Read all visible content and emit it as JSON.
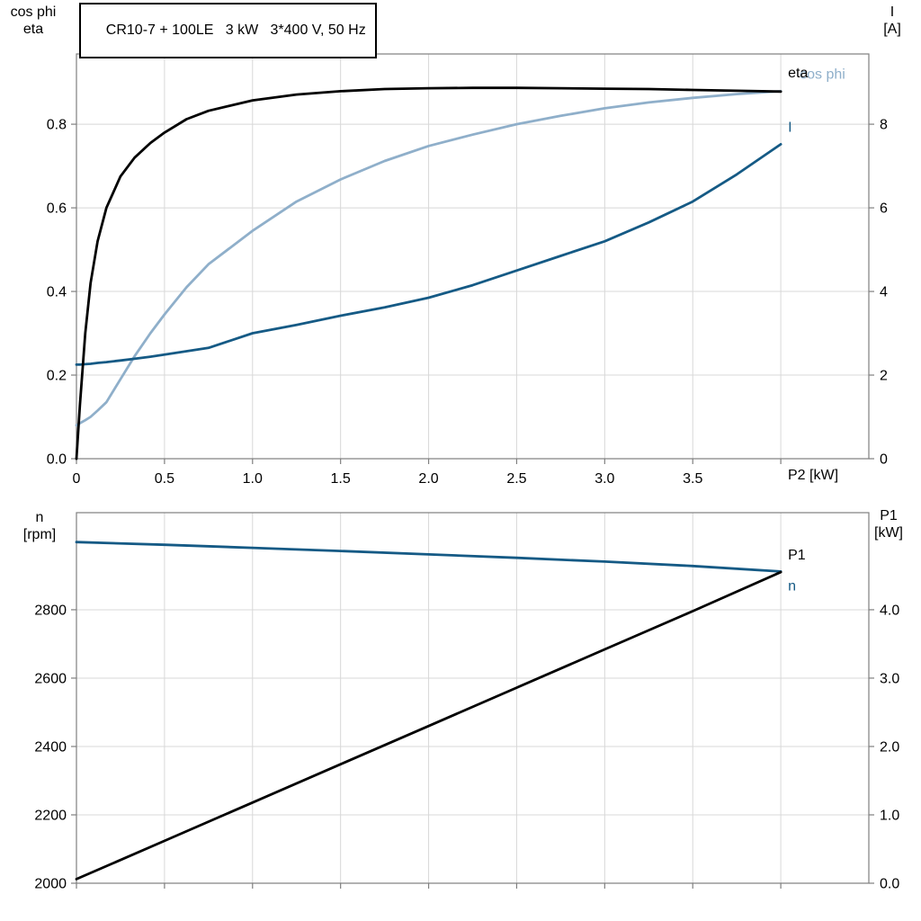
{
  "title_box": "CR10-7 + 100LE   3 kW   3*400 V, 50 Hz",
  "labels": {
    "top_left_line1": "cos phi",
    "top_left_line2": "eta",
    "top_right_line1": "I",
    "top_right_line2": "[A]",
    "bottom_left_line1": "n",
    "bottom_left_line2": "[rpm]",
    "bottom_right_line1": "P1",
    "bottom_right_line2": "[kW]",
    "x_axis_title": "P2 [kW]"
  },
  "colors": {
    "black": "#000000",
    "light_blue": "#8fafca",
    "dark_blue": "#155a85",
    "grid": "#d8d8d8",
    "axis": "#7f7f7f",
    "text": "#000000"
  },
  "chart_data": [
    {
      "id": "motor-efficiency-chart",
      "type": "line",
      "title": "CR10-7 + 100LE   3 kW   3*400 V, 50 Hz",
      "xlabel": "P2 [kW]",
      "xlim": [
        0,
        4.5
      ],
      "x_ticks": [
        {
          "v": 0,
          "label": "0"
        },
        {
          "v": 0.5,
          "label": "0.5"
        },
        {
          "v": 1.0,
          "label": "1.0"
        },
        {
          "v": 1.5,
          "label": "1.5"
        },
        {
          "v": 2.0,
          "label": "2.0"
        },
        {
          "v": 2.5,
          "label": "2.5"
        },
        {
          "v": 3.0,
          "label": "3.0"
        },
        {
          "v": 3.5,
          "label": "3.5"
        },
        {
          "v": 4.0,
          "label": null
        }
      ],
      "left_axis": {
        "title": "cos phi / eta",
        "lim": [
          0,
          0.968
        ],
        "ticks": [
          {
            "v": 0.0,
            "label": "0.0"
          },
          {
            "v": 0.2,
            "label": "0.2"
          },
          {
            "v": 0.4,
            "label": "0.4"
          },
          {
            "v": 0.6,
            "label": "0.6"
          },
          {
            "v": 0.8,
            "label": "0.8"
          }
        ]
      },
      "right_axis": {
        "title": "I [A]",
        "lim": [
          0,
          9.68
        ],
        "ticks": [
          {
            "v": 0,
            "label": "0"
          },
          {
            "v": 2,
            "label": "2"
          },
          {
            "v": 4,
            "label": "4"
          },
          {
            "v": 6,
            "label": "6"
          },
          {
            "v": 8,
            "label": "8"
          }
        ]
      },
      "x": [
        0,
        0.02,
        0.05,
        0.08,
        0.12,
        0.17,
        0.25,
        0.33,
        0.42,
        0.5,
        0.625,
        0.75,
        1.0,
        1.25,
        1.5,
        1.75,
        2.0,
        2.25,
        2.5,
        2.75,
        3.0,
        3.25,
        3.5,
        3.75,
        4.0
      ],
      "series": [
        {
          "name": "cos phi",
          "label": "cos phi",
          "axis": "left",
          "color": "light_blue",
          "label_dx": 21,
          "label_dy": -14,
          "values": [
            0.08,
            0.085,
            0.092,
            0.1,
            0.115,
            0.135,
            0.19,
            0.245,
            0.3,
            0.345,
            0.41,
            0.465,
            0.545,
            0.615,
            0.668,
            0.712,
            0.748,
            0.775,
            0.8,
            0.82,
            0.838,
            0.852,
            0.863,
            0.872,
            0.879
          ]
        },
        {
          "name": "I",
          "label": "I",
          "axis": "right",
          "color": "dark_blue",
          "label_dx": 8,
          "label_dy": -14,
          "values": [
            2.25,
            2.25,
            2.26,
            2.27,
            2.29,
            2.31,
            2.35,
            2.39,
            2.44,
            2.49,
            2.57,
            2.65,
            3.0,
            3.2,
            3.42,
            3.62,
            3.85,
            4.15,
            4.5,
            4.85,
            5.2,
            5.65,
            6.15,
            6.8,
            7.52
          ]
        },
        {
          "name": "eta",
          "label": "eta",
          "axis": "left",
          "color": "black",
          "label_dx": 8,
          "label_dy": -16,
          "values": [
            0,
            0.13,
            0.3,
            0.42,
            0.52,
            0.6,
            0.675,
            0.72,
            0.755,
            0.78,
            0.812,
            0.832,
            0.857,
            0.871,
            0.879,
            0.884,
            0.886,
            0.887,
            0.887,
            0.886,
            0.885,
            0.884,
            0.882,
            0.88,
            0.878
          ]
        }
      ]
    },
    {
      "id": "motor-speed-power-chart",
      "type": "line",
      "title": "",
      "xlabel": "",
      "xlim": [
        0,
        4.5
      ],
      "x_ticks": [
        {
          "v": 0,
          "label": null
        },
        {
          "v": 0.5,
          "label": null
        },
        {
          "v": 1.0,
          "label": null
        },
        {
          "v": 1.5,
          "label": null
        },
        {
          "v": 2.0,
          "label": null
        },
        {
          "v": 2.5,
          "label": null
        },
        {
          "v": 3.0,
          "label": null
        },
        {
          "v": 3.5,
          "label": null
        },
        {
          "v": 4.0,
          "label": null
        }
      ],
      "left_axis": {
        "title": "n [rpm]",
        "lim": [
          2000,
          3084
        ],
        "ticks": [
          {
            "v": 2000,
            "label": "2000"
          },
          {
            "v": 2200,
            "label": "2200"
          },
          {
            "v": 2400,
            "label": "2400"
          },
          {
            "v": 2600,
            "label": "2600"
          },
          {
            "v": 2800,
            "label": "2800"
          }
        ]
      },
      "right_axis": {
        "title": "P1 [kW]",
        "lim": [
          0,
          5.42
        ],
        "ticks": [
          {
            "v": 0,
            "label": "0.0"
          },
          {
            "v": 1,
            "label": "1.0"
          },
          {
            "v": 2,
            "label": "2.0"
          },
          {
            "v": 3,
            "label": "3.0"
          },
          {
            "v": 4,
            "label": "4.0"
          }
        ]
      },
      "x": [
        0,
        0.5,
        1.0,
        1.5,
        2.0,
        2.5,
        3.0,
        3.5,
        4.0
      ],
      "series": [
        {
          "name": "n",
          "label": "n",
          "axis": "left",
          "color": "dark_blue",
          "label_dx": 8,
          "label_dy": 21,
          "values": [
            2998,
            2990,
            2981,
            2972,
            2962,
            2952,
            2941,
            2928,
            2912
          ]
        },
        {
          "name": "P1",
          "label": "P1",
          "axis": "right",
          "color": "black",
          "label_dx": 8,
          "label_dy": -14,
          "values": [
            0.06,
            0.62,
            1.18,
            1.74,
            2.3,
            2.86,
            3.42,
            3.98,
            4.55
          ]
        }
      ]
    }
  ]
}
